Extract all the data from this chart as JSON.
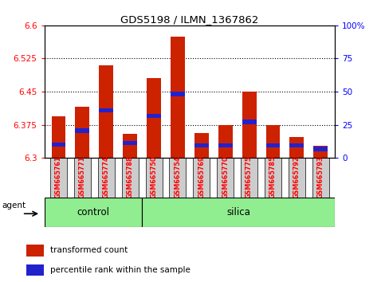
{
  "title": "GDS5198 / ILMN_1367862",
  "samples": [
    "GSM665761",
    "GSM665771",
    "GSM665774",
    "GSM665788",
    "GSM665750",
    "GSM665754",
    "GSM665769",
    "GSM665770",
    "GSM665775",
    "GSM665785",
    "GSM665792",
    "GSM665793"
  ],
  "groups": [
    "control",
    "control",
    "control",
    "control",
    "silica",
    "silica",
    "silica",
    "silica",
    "silica",
    "silica",
    "silica",
    "silica"
  ],
  "red_values": [
    6.395,
    6.415,
    6.51,
    6.355,
    6.48,
    6.575,
    6.357,
    6.375,
    6.45,
    6.375,
    6.348,
    6.328
  ],
  "blue_values": [
    6.33,
    6.362,
    6.408,
    6.334,
    6.395,
    6.445,
    6.328,
    6.328,
    6.382,
    6.328,
    6.328,
    6.32
  ],
  "ymin": 6.3,
  "ymax": 6.6,
  "yticks_left": [
    6.3,
    6.375,
    6.45,
    6.525,
    6.6
  ],
  "yticks_right": [
    0,
    25,
    50,
    75,
    100
  ],
  "n_control": 4,
  "n_silica": 8,
  "bar_color": "#CC2200",
  "blue_color": "#2222CC",
  "green_color": "#90EE90",
  "label_bg_color": "#CCCCCC",
  "legend_red": "transformed count",
  "legend_blue": "percentile rank within the sample",
  "agent_label": "agent",
  "bar_width": 0.6,
  "blue_bar_height": 0.01
}
